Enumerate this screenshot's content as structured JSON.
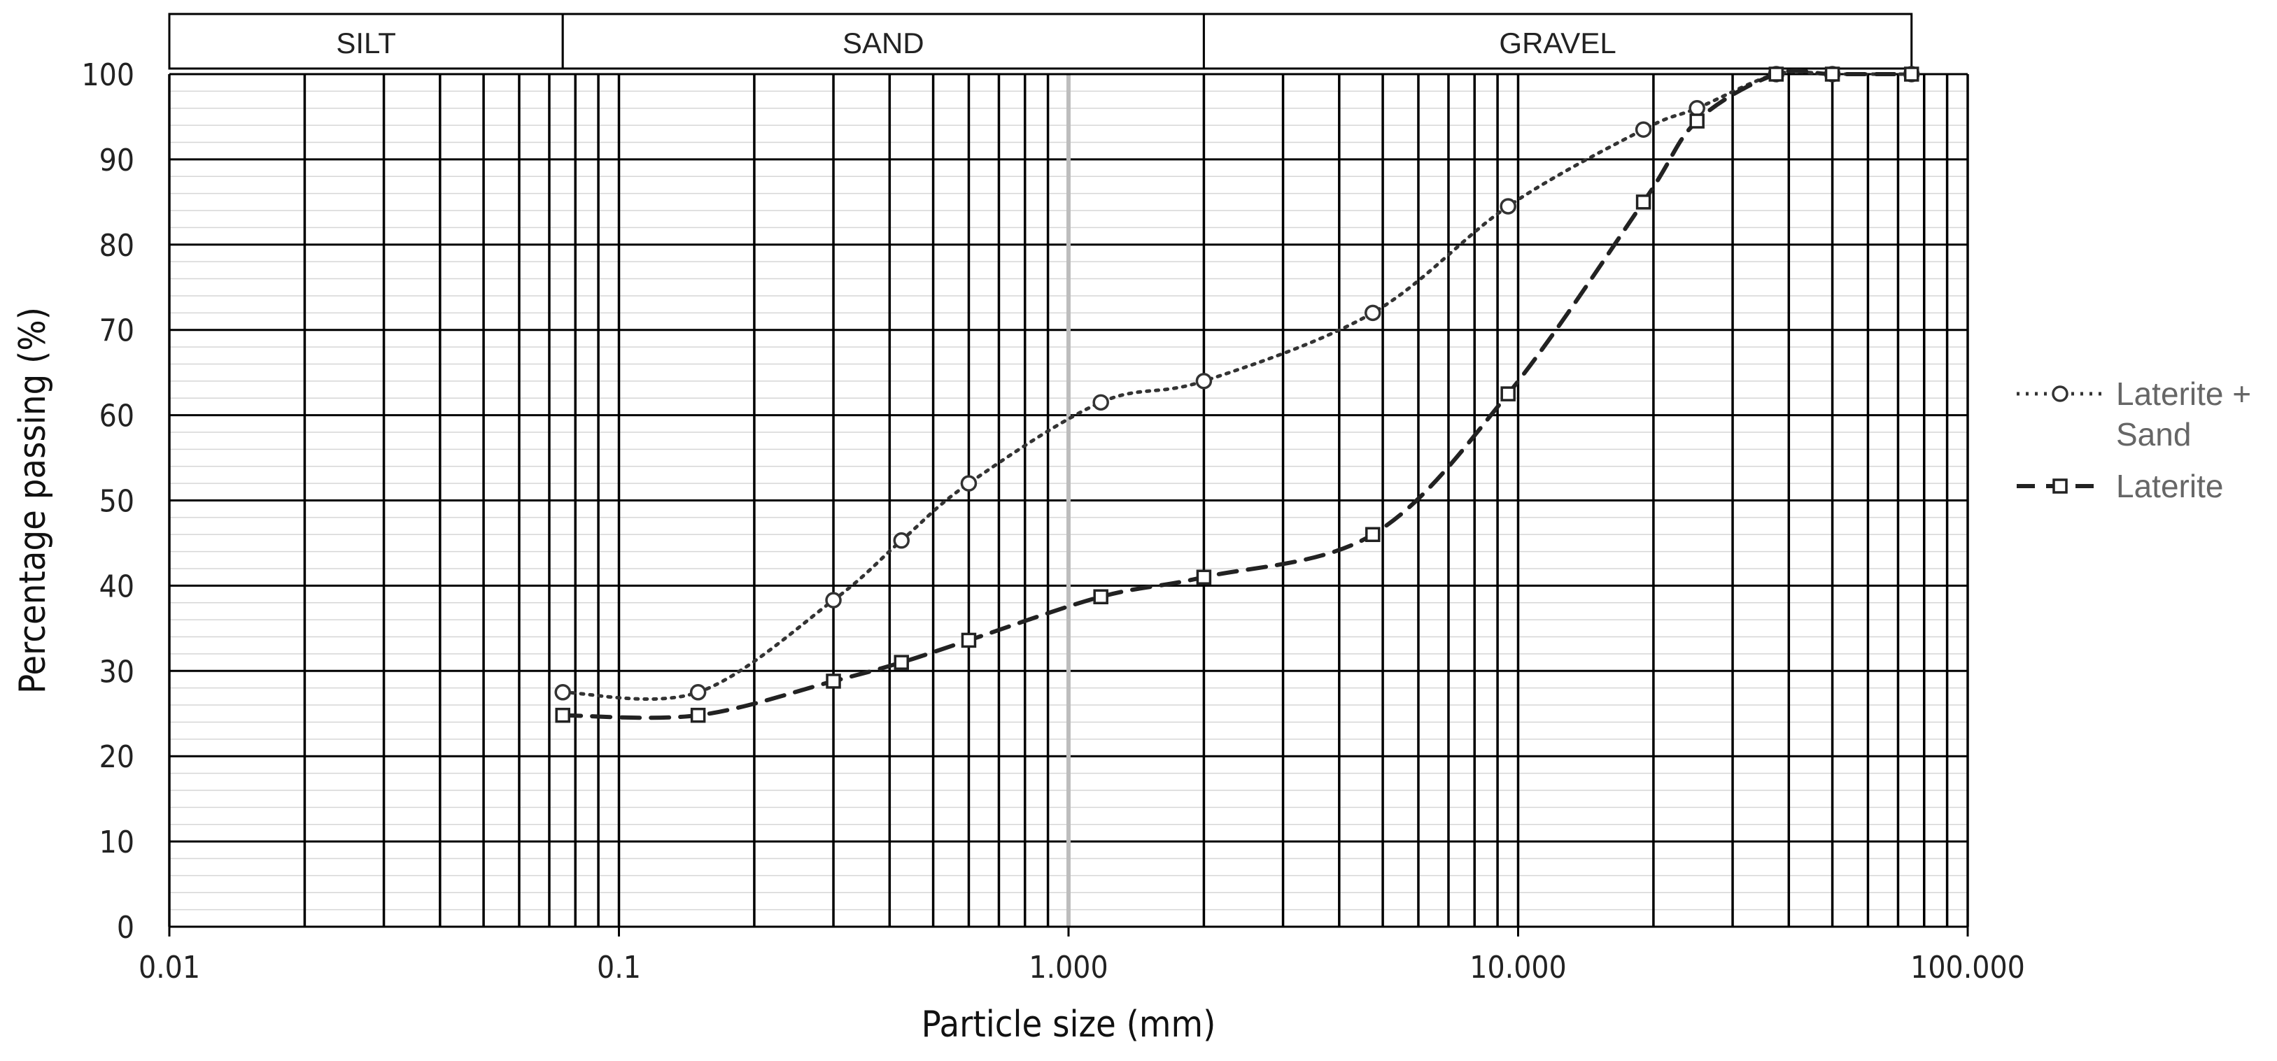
{
  "chart_data": {
    "type": "line",
    "xscale": "log",
    "xlim": [
      0.01,
      100
    ],
    "ylim": [
      0,
      100
    ],
    "xlabel": "Particle size (mm)",
    "ylabel": "Percentage passing (%)",
    "x_tick_labels": [
      "0.01",
      "0.1",
      "1.000",
      "10.000",
      "100.000"
    ],
    "y_tick_labels": [
      "0",
      "10",
      "20",
      "30",
      "40",
      "50",
      "60",
      "70",
      "80",
      "90",
      "100"
    ],
    "bands": [
      {
        "label": "SILT",
        "from": 0.01,
        "to": 0.075
      },
      {
        "label": "SAND",
        "from": 0.075,
        "to": 2
      },
      {
        "label": "GRAVEL",
        "from": 2,
        "to": 75
      }
    ],
    "grid": true,
    "legend_position": "right",
    "series": [
      {
        "name": "Laterite +\nSand",
        "label_lines": [
          "Laterite +",
          "Sand"
        ],
        "line_style": "dotted",
        "marker": "circle",
        "color": "#333333",
        "points": [
          [
            0.075,
            27.5
          ],
          [
            0.15,
            27.5
          ],
          [
            0.3,
            38.3
          ],
          [
            0.425,
            45.3
          ],
          [
            0.6,
            52
          ],
          [
            1.18,
            61.5
          ],
          [
            2,
            64
          ],
          [
            4.75,
            72
          ],
          [
            9.5,
            84.5
          ],
          [
            19,
            93.5
          ],
          [
            25,
            96
          ],
          [
            37.5,
            100
          ],
          [
            50,
            100
          ],
          [
            75,
            100
          ]
        ]
      },
      {
        "name": "Laterite",
        "label_lines": [
          "Laterite"
        ],
        "line_style": "dashed",
        "marker": "square",
        "color": "#222222",
        "points": [
          [
            0.075,
            24.8
          ],
          [
            0.15,
            24.8
          ],
          [
            0.3,
            28.8
          ],
          [
            0.425,
            31
          ],
          [
            0.6,
            33.6
          ],
          [
            1.18,
            38.7
          ],
          [
            2,
            41
          ],
          [
            4.75,
            46
          ],
          [
            9.5,
            62.5
          ],
          [
            19,
            85
          ],
          [
            25,
            94.5
          ],
          [
            37.5,
            100
          ],
          [
            50,
            100
          ],
          [
            75,
            100
          ]
        ]
      }
    ]
  }
}
